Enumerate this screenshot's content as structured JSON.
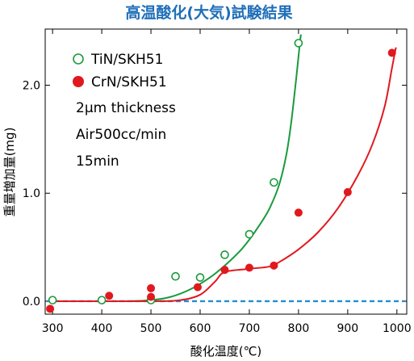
{
  "chart_data": {
    "type": "scatter",
    "title": "高温酸化(大気)試験結果",
    "xlabel": "酸化温度(℃)",
    "ylabel": "重量増加量(mg)",
    "xlim": [
      285,
      1020
    ],
    "ylim": [
      -0.12,
      2.52
    ],
    "xticks": [
      300,
      400,
      500,
      600,
      700,
      800,
      900,
      1000
    ],
    "yticks": [
      0.0,
      1.0,
      2.0
    ],
    "ytick_labels": [
      "0.0",
      "1.0",
      "2.0"
    ],
    "grid": false,
    "legend_position": "top-left",
    "annotations": [
      "2μm thickness",
      "Air500cc/min",
      "15min"
    ],
    "baseline": {
      "y": 0.0,
      "style": "dashed",
      "color": "#1f8fd0"
    },
    "series": [
      {
        "name": "TiN/SKH51",
        "marker": "open-circle",
        "color": "#1a9a3c",
        "points": [
          [
            300,
            0.01
          ],
          [
            400,
            0.01
          ],
          [
            500,
            0.01
          ],
          [
            550,
            0.23
          ],
          [
            600,
            0.22
          ],
          [
            650,
            0.43
          ],
          [
            700,
            0.62
          ],
          [
            750,
            1.1
          ],
          [
            800,
            2.39
          ]
        ],
        "fit_curve": [
          [
            300,
            0.0
          ],
          [
            450,
            0.0
          ],
          [
            500,
            0.01
          ],
          [
            540,
            0.04
          ],
          [
            580,
            0.11
          ],
          [
            620,
            0.22
          ],
          [
            650,
            0.33
          ],
          [
            680,
            0.46
          ],
          [
            700,
            0.57
          ],
          [
            720,
            0.7
          ],
          [
            740,
            0.85
          ],
          [
            760,
            1.07
          ],
          [
            775,
            1.35
          ],
          [
            785,
            1.65
          ],
          [
            795,
            2.05
          ],
          [
            803,
            2.4
          ],
          [
            805,
            2.47
          ]
        ]
      },
      {
        "name": "CrN/SKH51",
        "marker": "filled-circle",
        "color": "#e0191e",
        "points": [
          [
            295,
            -0.07
          ],
          [
            415,
            0.05
          ],
          [
            500,
            0.12
          ],
          [
            500,
            0.04
          ],
          [
            595,
            0.13
          ],
          [
            650,
            0.29
          ],
          [
            700,
            0.31
          ],
          [
            750,
            0.33
          ],
          [
            800,
            0.82
          ],
          [
            900,
            1.01
          ],
          [
            990,
            2.3
          ]
        ],
        "fit_curve": [
          [
            300,
            0.0
          ],
          [
            500,
            0.0
          ],
          [
            560,
            0.01
          ],
          [
            600,
            0.06
          ],
          [
            630,
            0.18
          ],
          [
            650,
            0.27
          ],
          [
            700,
            0.3
          ],
          [
            740,
            0.32
          ],
          [
            760,
            0.36
          ],
          [
            800,
            0.48
          ],
          [
            840,
            0.64
          ],
          [
            880,
            0.86
          ],
          [
            920,
            1.16
          ],
          [
            950,
            1.45
          ],
          [
            975,
            1.8
          ],
          [
            990,
            2.16
          ],
          [
            998,
            2.35
          ]
        ]
      }
    ]
  }
}
